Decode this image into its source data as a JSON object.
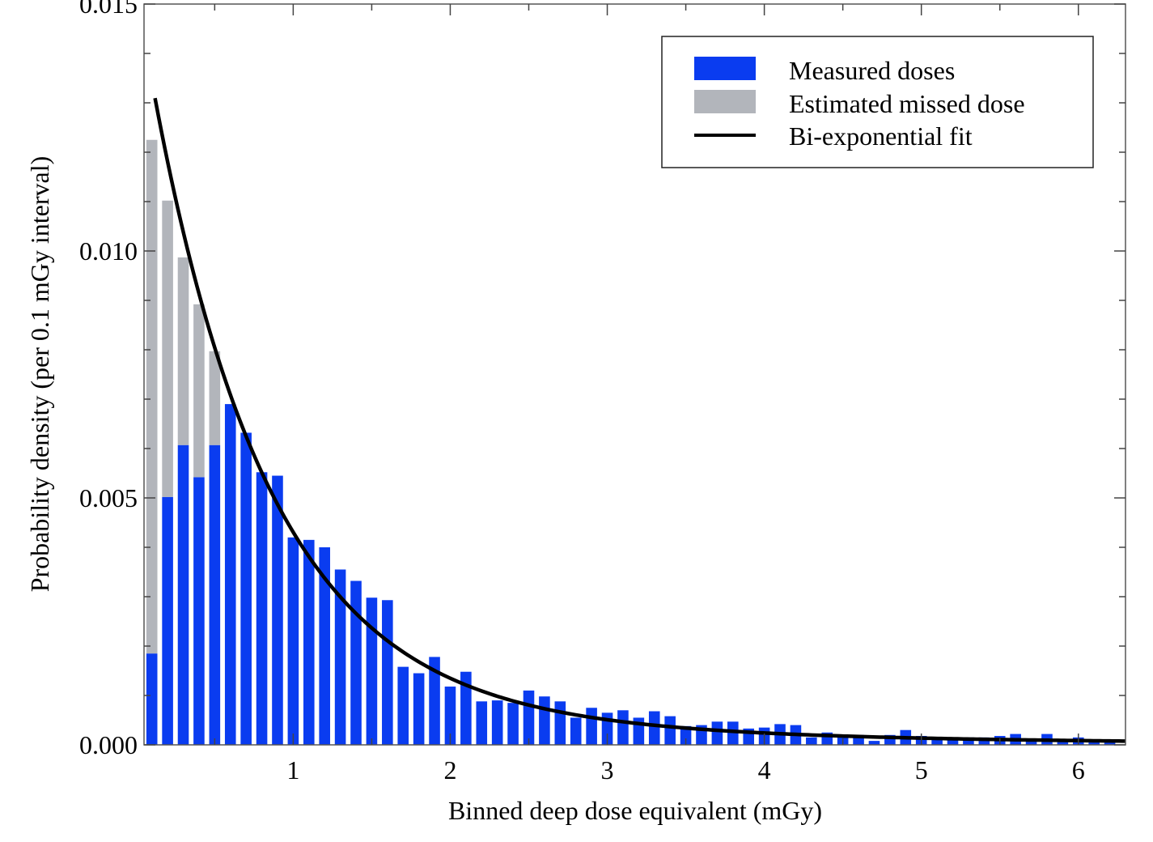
{
  "chart_data": {
    "type": "bar",
    "title": "",
    "xlabel": "Binned deep dose equivalent (mGy)",
    "ylabel": "Probability density (per 0.1 mGy interval)",
    "xlim": [
      0.05,
      6.3
    ],
    "ylim": [
      0,
      0.015
    ],
    "bin_width": 0.1,
    "x_ticks": [
      1,
      2,
      3,
      4,
      5,
      6
    ],
    "x_tick_labels": [
      "1",
      "2",
      "3",
      "4",
      "5",
      "6"
    ],
    "y_ticks": [
      0.0,
      0.005,
      0.01,
      0.015
    ],
    "y_tick_labels": [
      "0.000",
      "0.005",
      "0.010",
      "0.015"
    ],
    "grid": false,
    "legend_position": "top-right",
    "bin_centers": [
      0.1,
      0.2,
      0.3,
      0.4,
      0.5,
      0.6,
      0.7,
      0.8,
      0.9,
      1.0,
      1.1,
      1.2,
      1.3,
      1.4,
      1.5,
      1.6,
      1.7,
      1.8,
      1.9,
      2.0,
      2.1,
      2.2,
      2.3,
      2.4,
      2.5,
      2.6,
      2.7,
      2.8,
      2.9,
      3.0,
      3.1,
      3.2,
      3.3,
      3.4,
      3.5,
      3.6,
      3.7,
      3.8,
      3.9,
      4.0,
      4.1,
      4.2,
      4.3,
      4.4,
      4.5,
      4.6,
      4.7,
      4.8,
      4.9,
      5.0,
      5.1,
      5.2,
      5.3,
      5.4,
      5.5,
      5.6,
      5.7,
      5.8,
      5.9,
      6.0,
      6.1,
      6.2
    ],
    "series": [
      {
        "name": "Measured doses",
        "color": "#0a3cf0",
        "values": [
          0.00185,
          0.00502,
          0.00607,
          0.00542,
          0.00607,
          0.0069,
          0.00632,
          0.00552,
          0.00545,
          0.0042,
          0.00415,
          0.004,
          0.00355,
          0.00332,
          0.00298,
          0.00293,
          0.00158,
          0.00145,
          0.00178,
          0.00118,
          0.00148,
          0.00088,
          0.0009,
          0.00085,
          0.0011,
          0.00098,
          0.00088,
          0.00055,
          0.00075,
          0.00065,
          0.0007,
          0.00055,
          0.00068,
          0.00058,
          0.00038,
          0.0004,
          0.00047,
          0.00047,
          0.00033,
          0.00035,
          0.00042,
          0.0004,
          0.00015,
          0.00025,
          0.0002,
          0.0002,
          8e-05,
          0.0002,
          0.0003,
          0.00018,
          0.0001,
          0.00015,
          0.00015,
          0.00015,
          0.00018,
          0.00022,
          0.0001,
          0.00022,
          0.00012,
          0.00015,
          0.0001,
          5e-05
        ]
      },
      {
        "name": "Estimated missed dose",
        "color": "#b2b5bb",
        "values": [
          0.0104,
          0.006,
          0.0038,
          0.0035,
          0.0019,
          0,
          0,
          0,
          0,
          0,
          0,
          0,
          0,
          0,
          0,
          0,
          0,
          0,
          0,
          0,
          0,
          0,
          0,
          0,
          0,
          0,
          0,
          0,
          0,
          0,
          0,
          0,
          0,
          0,
          0,
          0,
          0,
          0,
          0,
          0,
          0,
          0,
          0,
          0,
          0,
          0,
          0,
          0,
          0,
          0,
          0,
          0,
          0,
          0,
          0,
          0,
          0,
          0,
          0,
          0,
          0,
          0
        ]
      },
      {
        "name": "Bi-exponential fit",
        "color": "#000000",
        "type": "line",
        "x_range": [
          0.12,
          6.3
        ],
        "a1": 0.0145,
        "k1": 1.35,
        "a2": 0.0008,
        "k2": 0.38
      }
    ]
  }
}
